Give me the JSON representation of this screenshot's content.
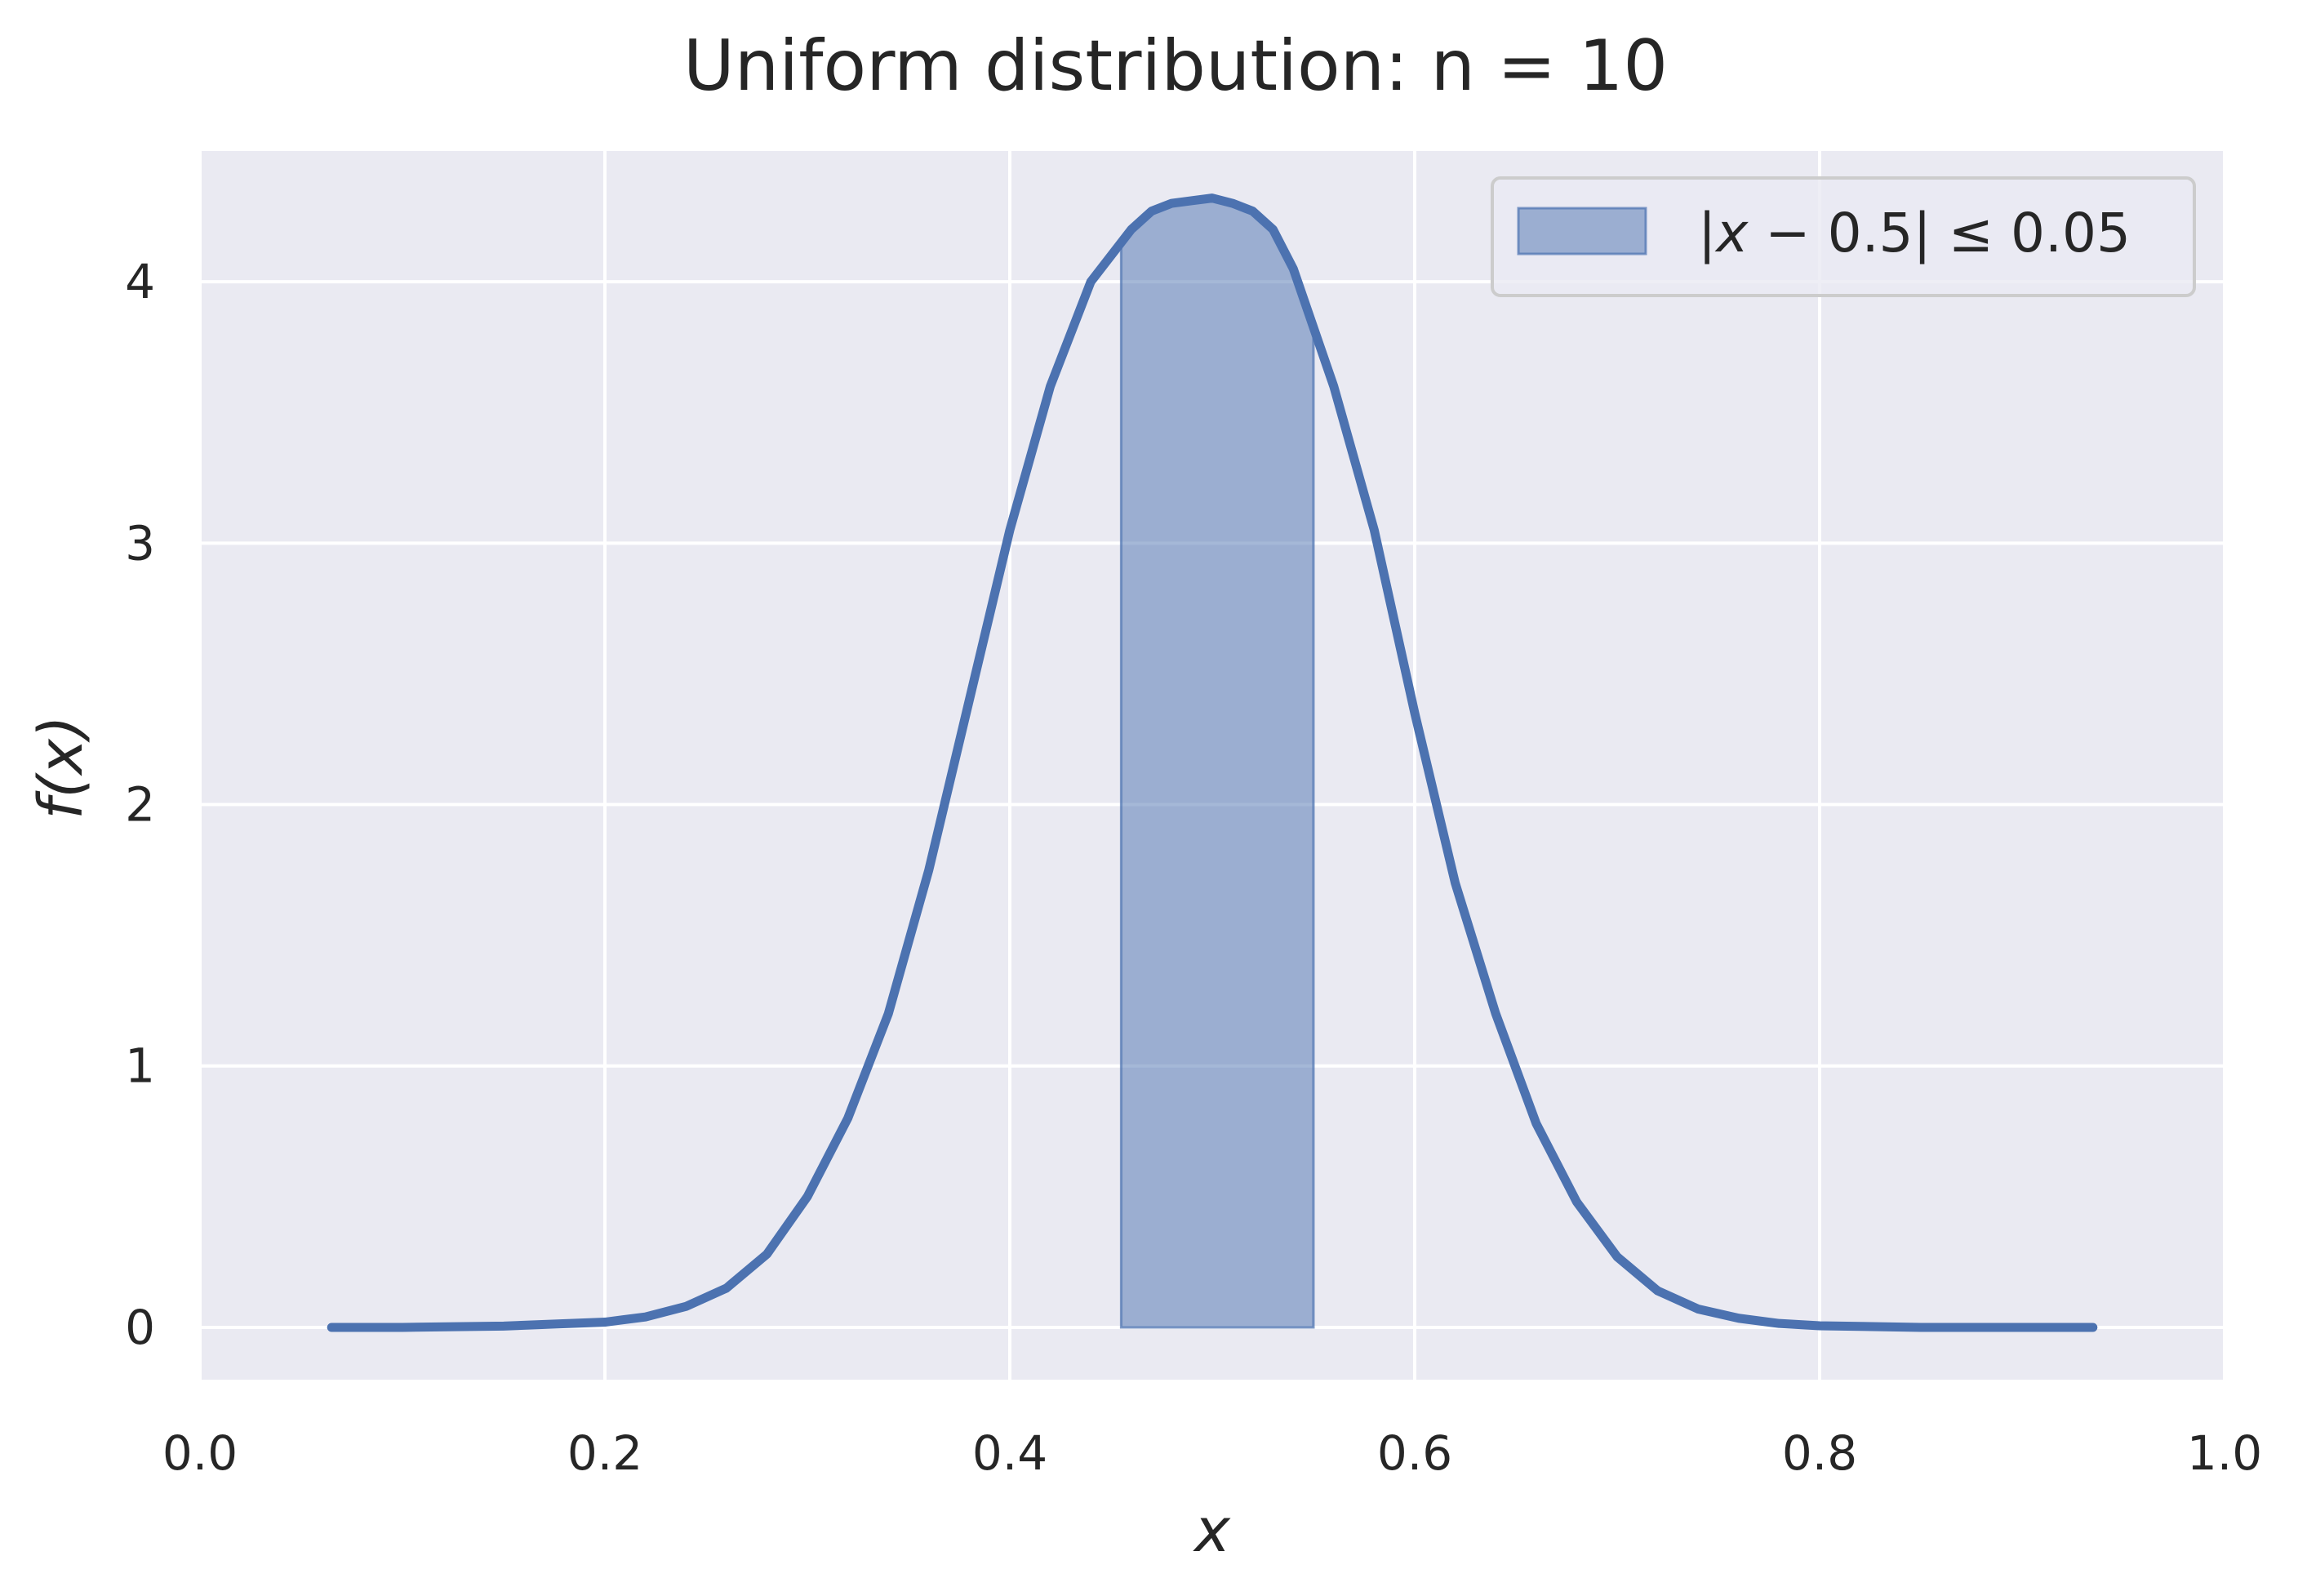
{
  "chart_data": {
    "type": "line",
    "title": "Uniform distribution: n = 10",
    "xlabel": "x",
    "ylabel": "f(x)",
    "xlim": [
      0.0,
      1.0
    ],
    "ylim": [
      -0.2,
      4.5
    ],
    "x_ticks": [
      0.0,
      0.2,
      0.4,
      0.6,
      0.8,
      1.0
    ],
    "x_tick_labels": [
      "0.0",
      "0.2",
      "0.4",
      "0.6",
      "0.8",
      "1.0"
    ],
    "y_ticks": [
      0,
      1,
      2,
      3,
      4
    ],
    "y_tick_labels": [
      "0",
      "1",
      "2",
      "3",
      "4"
    ],
    "grid": true,
    "legend": {
      "position": "top-right",
      "entries": [
        {
          "label_parts": [
            "|",
            "x",
            " − 0.5| ≤ 0.05"
          ],
          "type": "filled-area"
        }
      ]
    },
    "series": [
      {
        "type": "line",
        "color": "#4c72b0",
        "x": [
          0.065,
          0.1,
          0.15,
          0.2,
          0.22,
          0.24,
          0.26,
          0.28,
          0.3,
          0.32,
          0.34,
          0.36,
          0.38,
          0.4,
          0.42,
          0.44,
          0.46,
          0.47,
          0.48,
          0.49,
          0.5,
          0.51,
          0.52,
          0.53,
          0.54,
          0.56,
          0.58,
          0.6,
          0.62,
          0.64,
          0.66,
          0.68,
          0.7,
          0.72,
          0.74,
          0.76,
          0.78,
          0.8,
          0.85,
          0.9,
          0.935
        ],
        "y": [
          0.0,
          0.0,
          0.005,
          0.02,
          0.04,
          0.08,
          0.15,
          0.28,
          0.5,
          0.8,
          1.2,
          1.75,
          2.4,
          3.05,
          3.6,
          4.0,
          4.2,
          4.27,
          4.3,
          4.31,
          4.32,
          4.3,
          4.27,
          4.2,
          4.05,
          3.6,
          3.05,
          2.35,
          1.7,
          1.2,
          0.78,
          0.48,
          0.27,
          0.14,
          0.07,
          0.035,
          0.015,
          0.006,
          0.0,
          0.0,
          0.0
        ]
      }
    ],
    "shaded_region": {
      "x_start": 0.455,
      "x_end": 0.55,
      "color": "#4c72b0",
      "opacity": 0.5
    }
  }
}
